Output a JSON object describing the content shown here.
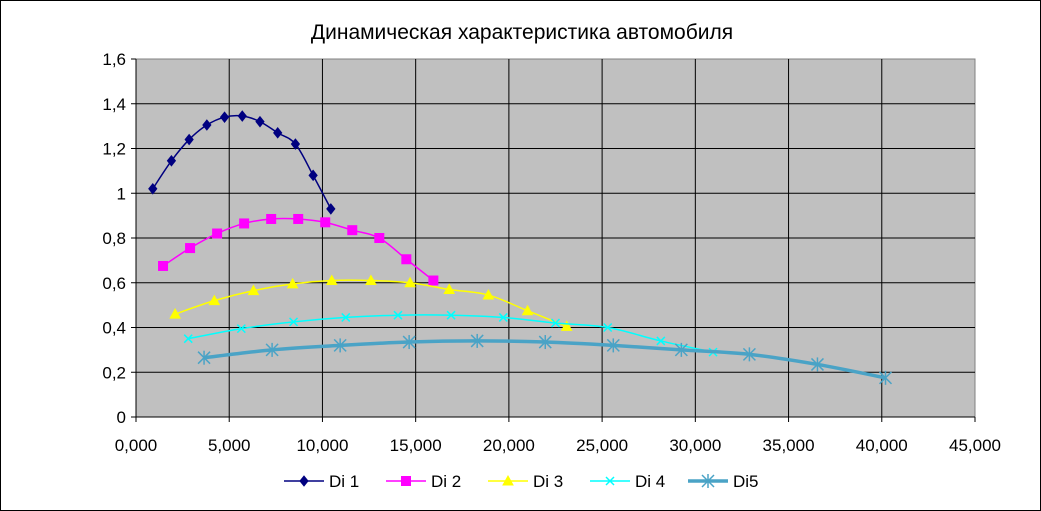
{
  "chart_data": {
    "type": "scatter",
    "title": "Динамическая характеристика автомобиля",
    "xlabel": "",
    "ylabel": "",
    "xlim": [
      0,
      45
    ],
    "ylim": [
      0,
      1.6
    ],
    "x_ticks": [
      "0,000",
      "5,000",
      "10,000",
      "15,000",
      "20,000",
      "25,000",
      "30,000",
      "35,000",
      "40,000",
      "45,000"
    ],
    "y_ticks": [
      "0",
      "0,2",
      "0,4",
      "0,6",
      "0,8",
      "1",
      "1,2",
      "1,4",
      "1,6"
    ],
    "grid": true,
    "legend_position": "bottom",
    "plot_background": "#c0c0c0",
    "series": [
      {
        "name": "Di 1",
        "color": "#000080",
        "marker": "diamond",
        "x": [
          0.9,
          1.9,
          2.85,
          3.8,
          4.75,
          5.7,
          6.65,
          7.6,
          8.55,
          9.5,
          10.45
        ],
        "y": [
          1.02,
          1.145,
          1.24,
          1.305,
          1.34,
          1.345,
          1.32,
          1.27,
          1.22,
          1.08,
          0.93
        ]
      },
      {
        "name": "Di 2",
        "color": "#ff00ff",
        "marker": "square",
        "x": [
          1.45,
          2.9,
          4.35,
          5.8,
          7.25,
          8.7,
          10.15,
          11.6,
          13.05,
          14.5,
          15.95
        ],
        "y": [
          0.675,
          0.755,
          0.82,
          0.865,
          0.885,
          0.885,
          0.87,
          0.835,
          0.8,
          0.705,
          0.61
        ]
      },
      {
        "name": "Di 3",
        "color": "#ffff00",
        "marker": "triangle",
        "x": [
          2.1,
          4.2,
          6.3,
          8.4,
          10.5,
          12.6,
          14.7,
          16.8,
          18.9,
          21.0,
          23.1
        ],
        "y": [
          0.46,
          0.52,
          0.565,
          0.595,
          0.61,
          0.61,
          0.6,
          0.57,
          0.545,
          0.475,
          0.405
        ]
      },
      {
        "name": "Di 4",
        "color": "#00ffff",
        "marker": "x",
        "x": [
          2.8,
          5.65,
          8.45,
          11.25,
          14.05,
          16.9,
          19.7,
          22.5,
          25.3,
          28.15,
          30.95
        ],
        "y": [
          0.35,
          0.395,
          0.425,
          0.445,
          0.455,
          0.455,
          0.445,
          0.42,
          0.4,
          0.34,
          0.29
        ]
      },
      {
        "name": "Di5",
        "color": "#4aa3c6",
        "marker": "star",
        "x": [
          3.65,
          7.3,
          10.95,
          14.65,
          18.3,
          21.95,
          25.6,
          29.25,
          32.9,
          36.55,
          40.2
        ],
        "y": [
          0.265,
          0.3,
          0.32,
          0.335,
          0.34,
          0.335,
          0.32,
          0.3,
          0.28,
          0.235,
          0.175
        ]
      }
    ]
  }
}
